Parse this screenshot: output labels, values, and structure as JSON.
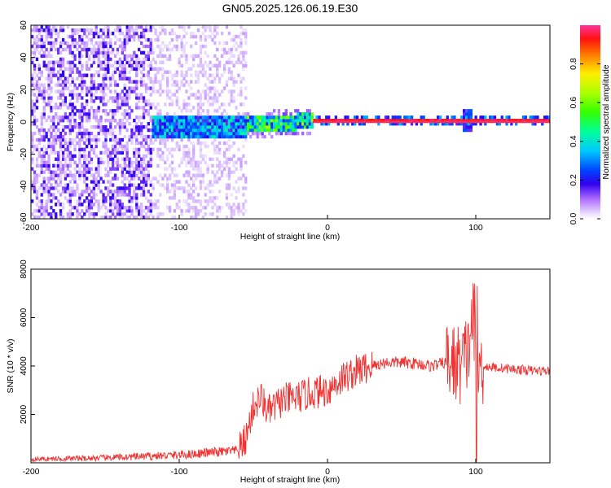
{
  "title": "GN05.2025.126.06.19.E30",
  "colorbar": {
    "label": "Normalized spectral amplitude",
    "ticks": [
      "0.0",
      "0.2",
      "0.4",
      "0.6",
      "0.8"
    ],
    "range": [
      0,
      1
    ]
  },
  "chart_data": [
    {
      "type": "heatmap",
      "xlabel": "Height of straight line (km)",
      "ylabel": "Frequency (Hz)",
      "xlim": [
        -200,
        150
      ],
      "ylim": [
        -60,
        60
      ],
      "xticks": [
        "-200",
        "-100",
        "0",
        "100"
      ],
      "yticks": [
        "-60",
        "-40",
        "-20",
        "0",
        "20",
        "40",
        "60"
      ],
      "grid": false,
      "regions": [
        {
          "x_range": [
            -200,
            -120
          ],
          "freq_range": [
            -60,
            60
          ],
          "amplitude": "low noise, scattered"
        },
        {
          "x_range": [
            -120,
            -55
          ],
          "freq_range": [
            -60,
            60
          ],
          "amplitude": "faint noise"
        },
        {
          "x_range": [
            -120,
            -55
          ],
          "freq_range": [
            -12,
            3
          ],
          "amplitude": "0.2-0.5 signal band"
        },
        {
          "x_range": [
            -55,
            -10
          ],
          "freq_range": [
            -5,
            2
          ],
          "amplitude": "0.3-0.7 signal band"
        },
        {
          "x_range": [
            -10,
            150
          ],
          "freq_range": [
            -1,
            1
          ],
          "amplitude": "0.9-1.0 narrow tone"
        }
      ]
    },
    {
      "type": "line",
      "xlabel": "Height of straight line (km)",
      "ylabel": "SNR (10 * v/v)",
      "xlim": [
        -200,
        150
      ],
      "ylim": [
        0,
        8000
      ],
      "xticks": [
        "-200",
        "-100",
        "0",
        "100"
      ],
      "yticks": [
        "2000",
        "4000",
        "6000",
        "8000"
      ],
      "grid": false,
      "series_color": "#ee3333",
      "x": [
        -200,
        -150,
        -100,
        -80,
        -60,
        -55,
        -50,
        -45,
        -40,
        -30,
        -20,
        -10,
        0,
        10,
        20,
        30,
        40,
        50,
        60,
        70,
        80,
        90,
        95,
        98,
        100,
        102,
        105,
        110,
        120,
        130,
        140,
        150
      ],
      "y": [
        150,
        200,
        320,
        420,
        500,
        1000,
        2300,
        2700,
        2100,
        2600,
        2700,
        2900,
        3000,
        3500,
        3800,
        4000,
        4150,
        4150,
        4100,
        4000,
        4150,
        4050,
        4600,
        6300,
        3700,
        3900,
        4000,
        3950,
        3900,
        3850,
        3800,
        3800
      ]
    }
  ]
}
